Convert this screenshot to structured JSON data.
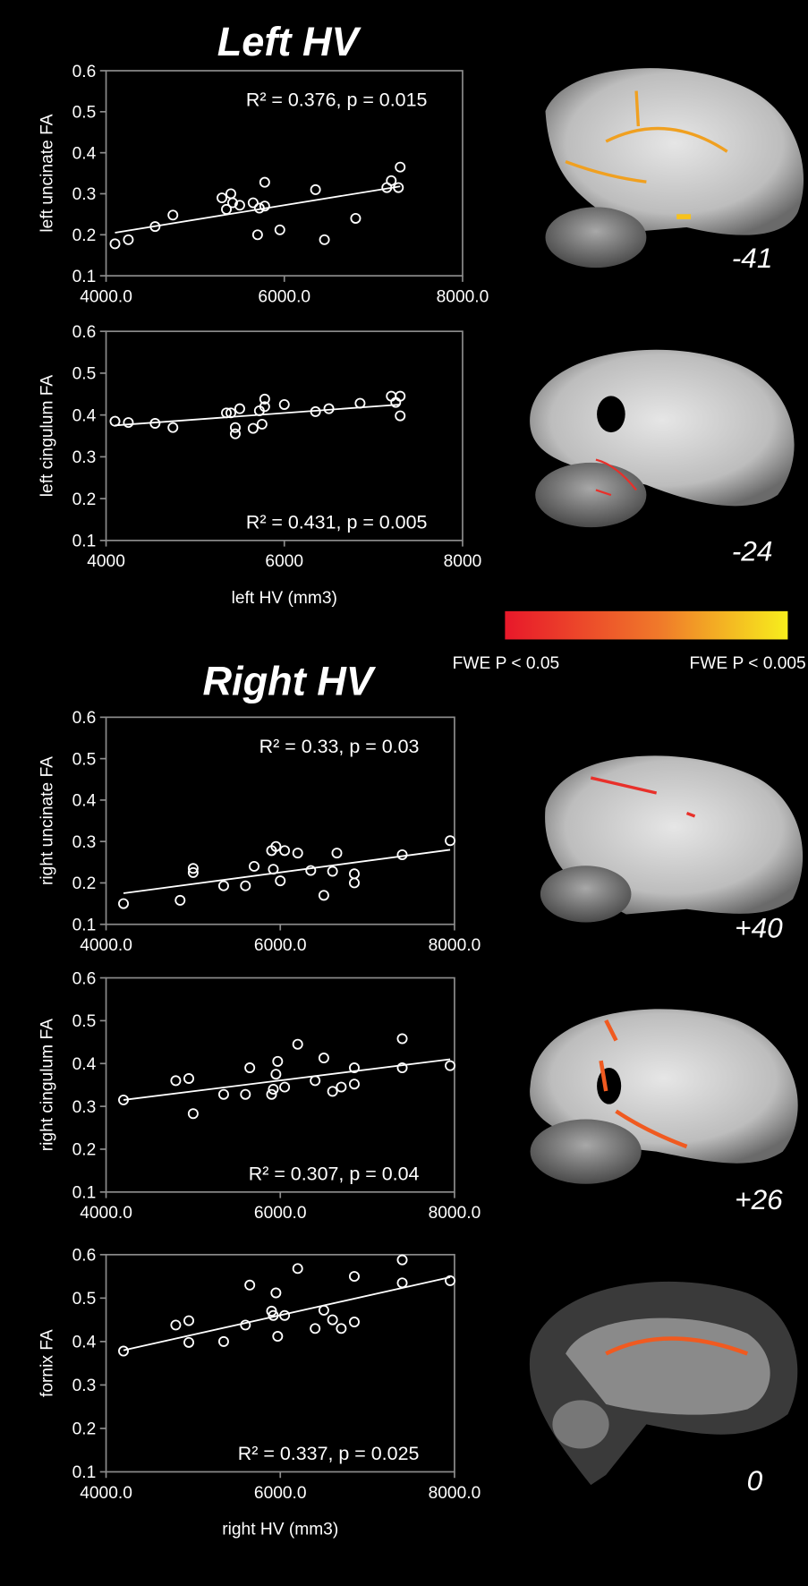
{
  "headings": [
    "Left HV",
    "Right HV"
  ],
  "slice_labels": [
    "-41",
    "-24",
    "+40",
    "+26",
    "0"
  ],
  "colorbar": {
    "low_label": "FWE P < 0.05",
    "high_label": "FWE P < 0.005",
    "low_color": "#e8182a",
    "high_color": "#f7ee1c"
  },
  "chart_data": [
    {
      "type": "scatter",
      "ylabel": "left uncinate FA",
      "annotation": "R² = 0.376, p = 0.015",
      "xlim": [
        4000,
        8000
      ],
      "ylim": [
        0.1,
        0.6
      ],
      "xticks": [
        {
          "value": 4000,
          "label": "4000.0"
        },
        {
          "value": 6000,
          "label": "6000.0"
        },
        {
          "value": 8000,
          "label": "8000.0"
        }
      ],
      "yticks": [
        0.1,
        0.2,
        0.3,
        0.4,
        0.5,
        0.6
      ],
      "x": [
        4100,
        4250,
        4550,
        4750,
        5300,
        5350,
        5400,
        5420,
        5500,
        5650,
        5700,
        5720,
        5780,
        5780,
        5950,
        6350,
        6450,
        6800,
        7150,
        7200,
        7280,
        7300
      ],
      "y": [
        0.178,
        0.188,
        0.22,
        0.248,
        0.29,
        0.262,
        0.3,
        0.278,
        0.272,
        0.278,
        0.2,
        0.265,
        0.328,
        0.27,
        0.212,
        0.31,
        0.188,
        0.24,
        0.315,
        0.332,
        0.315,
        0.365
      ],
      "fit": {
        "x": [
          4100,
          7300
        ],
        "y": [
          0.205,
          0.318
        ]
      }
    },
    {
      "type": "scatter",
      "ylabel": "left cingulum FA",
      "xlabel": "left HV (mm3)",
      "annotation": "R² = 0.431, p = 0.005",
      "xlim": [
        4000,
        8000
      ],
      "ylim": [
        0.1,
        0.6
      ],
      "xticks": [
        4000,
        6000,
        8000
      ],
      "yticks": [
        0.1,
        0.2,
        0.3,
        0.4,
        0.5,
        0.6
      ],
      "x": [
        4100,
        4250,
        4550,
        4750,
        5350,
        5400,
        5450,
        5450,
        5500,
        5650,
        5720,
        5750,
        5780,
        5780,
        6000,
        6350,
        6500,
        6850,
        7200,
        7250,
        7300,
        7300
      ],
      "y": [
        0.385,
        0.382,
        0.38,
        0.37,
        0.405,
        0.405,
        0.37,
        0.355,
        0.415,
        0.368,
        0.41,
        0.378,
        0.42,
        0.438,
        0.425,
        0.408,
        0.415,
        0.428,
        0.445,
        0.43,
        0.445,
        0.398
      ],
      "fit": {
        "x": [
          4100,
          7300
        ],
        "y": [
          0.375,
          0.425
        ]
      }
    },
    {
      "type": "scatter",
      "ylabel": "right uncinate FA",
      "annotation": "R² = 0.33, p = 0.03",
      "xlim": [
        4000,
        8000
      ],
      "ylim": [
        0.1,
        0.6
      ],
      "xticks": [
        {
          "value": 4000,
          "label": "4000.0"
        },
        {
          "value": 6000,
          "label": "6000.0"
        },
        {
          "value": 8000,
          "label": "8000.0"
        }
      ],
      "yticks": [
        0.1,
        0.2,
        0.3,
        0.4,
        0.5,
        0.6
      ],
      "x": [
        4200,
        4850,
        5000,
        5000,
        5350,
        5600,
        5700,
        5900,
        5920,
        5950,
        6000,
        6050,
        6200,
        6350,
        6500,
        6600,
        6650,
        6850,
        6850,
        7400,
        7950
      ],
      "y": [
        0.15,
        0.158,
        0.235,
        0.225,
        0.193,
        0.193,
        0.24,
        0.278,
        0.233,
        0.288,
        0.205,
        0.278,
        0.272,
        0.23,
        0.17,
        0.228,
        0.272,
        0.222,
        0.2,
        0.268,
        0.302
      ],
      "fit": {
        "x": [
          4200,
          7950
        ],
        "y": [
          0.175,
          0.28
        ]
      }
    },
    {
      "type": "scatter",
      "ylabel": "right cingulum FA",
      "annotation": "R² = 0.307, p = 0.04",
      "xlim": [
        4000,
        8000
      ],
      "ylim": [
        0.1,
        0.6
      ],
      "xticks": [
        {
          "value": 4000,
          "label": "4000.0"
        },
        {
          "value": 6000,
          "label": "6000.0"
        },
        {
          "value": 8000,
          "label": "8000.0"
        }
      ],
      "yticks": [
        0.1,
        0.2,
        0.3,
        0.4,
        0.5,
        0.6
      ],
      "x": [
        4200,
        4800,
        4950,
        5000,
        5350,
        5600,
        5650,
        5900,
        5920,
        5950,
        5970,
        6050,
        6200,
        6400,
        6500,
        6600,
        6700,
        6850,
        6850,
        7400,
        7400,
        7950
      ],
      "y": [
        0.315,
        0.36,
        0.365,
        0.283,
        0.328,
        0.328,
        0.39,
        0.328,
        0.34,
        0.375,
        0.405,
        0.345,
        0.445,
        0.36,
        0.413,
        0.335,
        0.345,
        0.352,
        0.39,
        0.458,
        0.39,
        0.395
      ],
      "fit": {
        "x": [
          4200,
          7950
        ],
        "y": [
          0.315,
          0.41
        ]
      }
    },
    {
      "type": "scatter",
      "ylabel": "fornix FA",
      "xlabel": "right HV (mm3)",
      "annotation": "R² = 0.337, p = 0.025",
      "xlim": [
        4000,
        8000
      ],
      "ylim": [
        0.1,
        0.6
      ],
      "xticks": [
        {
          "value": 4000,
          "label": "4000.0"
        },
        {
          "value": 6000,
          "label": "6000.0"
        },
        {
          "value": 8000,
          "label": "8000.0"
        }
      ],
      "yticks": [
        0.1,
        0.2,
        0.3,
        0.4,
        0.5,
        0.6
      ],
      "x": [
        4200,
        4800,
        4950,
        4950,
        5350,
        5600,
        5650,
        5900,
        5920,
        5950,
        5970,
        6050,
        6200,
        6400,
        6500,
        6600,
        6700,
        6850,
        6850,
        7400,
        7400,
        7950
      ],
      "y": [
        0.378,
        0.438,
        0.448,
        0.398,
        0.4,
        0.438,
        0.53,
        0.47,
        0.46,
        0.512,
        0.412,
        0.46,
        0.568,
        0.43,
        0.472,
        0.45,
        0.43,
        0.55,
        0.445,
        0.588,
        0.535,
        0.54
      ],
      "fit": {
        "x": [
          4200,
          7950
        ],
        "y": [
          0.38,
          0.548
        ]
      }
    }
  ]
}
